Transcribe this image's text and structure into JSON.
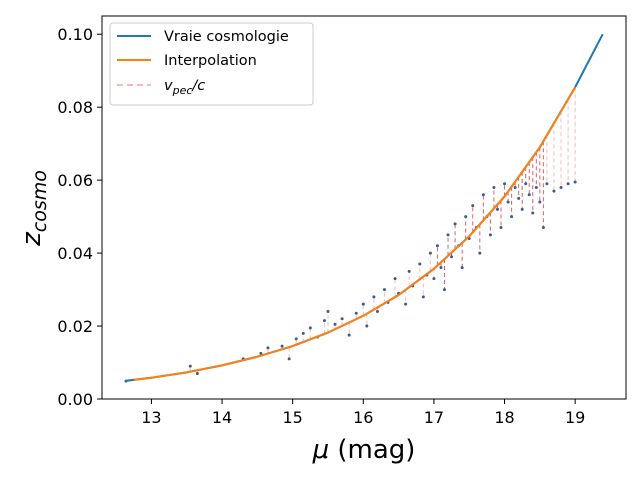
{
  "chart_data": {
    "type": "scatter",
    "title": "",
    "xlabel": "μ (mag)",
    "ylabel_base": "z",
    "ylabel_sub": "cosmo",
    "xlim": [
      12.3,
      19.72
    ],
    "ylim": [
      0.0,
      0.105
    ],
    "xticks": [
      13,
      14,
      15,
      16,
      17,
      18,
      19
    ],
    "yticks": [
      0.0,
      0.02,
      0.04,
      0.06,
      0.08,
      0.1
    ],
    "ytick_labels": [
      "0.00",
      "0.02",
      "0.04",
      "0.06",
      "0.08",
      "0.10"
    ],
    "grid": false,
    "legend_position": "top-left",
    "colors": {
      "true_cosmology": "#1f77b4",
      "interpolation": "#ff7f0e",
      "vpec": "#f4a3a8",
      "vpec_dense": "#d62728",
      "points": "#3b5b92"
    },
    "series": [
      {
        "name": "Vraie cosmologie",
        "style": "line",
        "x": [
          12.64,
          13.0,
          13.5,
          14.0,
          14.5,
          15.0,
          15.5,
          16.0,
          16.5,
          17.0,
          17.5,
          18.0,
          18.5,
          19.0,
          19.39
        ],
        "y": [
          0.005,
          0.0058,
          0.0073,
          0.0092,
          0.0116,
          0.0145,
          0.0182,
          0.0228,
          0.0285,
          0.0357,
          0.0446,
          0.0555,
          0.069,
          0.0855,
          0.1
        ]
      },
      {
        "name": "Interpolation",
        "style": "line",
        "x": [
          12.75,
          13.0,
          13.5,
          14.0,
          14.5,
          15.0,
          15.5,
          16.0,
          16.5,
          17.0,
          17.5,
          18.0,
          18.5,
          19.0
        ],
        "y": [
          0.0053,
          0.0058,
          0.0073,
          0.0092,
          0.0116,
          0.0145,
          0.0182,
          0.0228,
          0.0285,
          0.0357,
          0.0446,
          0.0555,
          0.069,
          0.0855
        ]
      },
      {
        "name": "v_pec/c",
        "label_main": "v",
        "label_sub": "pec",
        "label_tail": "/c",
        "style": "dashed-vertical"
      }
    ],
    "scatter_points": [
      [
        12.64,
        0.0049
      ],
      [
        13.55,
        0.009
      ],
      [
        13.65,
        0.007
      ],
      [
        14.3,
        0.011
      ],
      [
        14.55,
        0.0125
      ],
      [
        14.65,
        0.014
      ],
      [
        14.85,
        0.0145
      ],
      [
        14.95,
        0.011
      ],
      [
        15.05,
        0.0165
      ],
      [
        15.15,
        0.018
      ],
      [
        15.25,
        0.0195
      ],
      [
        15.35,
        0.017
      ],
      [
        15.45,
        0.0215
      ],
      [
        15.5,
        0.024
      ],
      [
        15.6,
        0.0205
      ],
      [
        15.7,
        0.022
      ],
      [
        15.8,
        0.0175
      ],
      [
        15.9,
        0.0235
      ],
      [
        16.0,
        0.026
      ],
      [
        16.05,
        0.02
      ],
      [
        16.15,
        0.028
      ],
      [
        16.2,
        0.024
      ],
      [
        16.3,
        0.03
      ],
      [
        16.35,
        0.0265
      ],
      [
        16.45,
        0.033
      ],
      [
        16.5,
        0.029
      ],
      [
        16.6,
        0.026
      ],
      [
        16.65,
        0.035
      ],
      [
        16.7,
        0.031
      ],
      [
        16.8,
        0.037
      ],
      [
        16.85,
        0.028
      ],
      [
        16.9,
        0.034
      ],
      [
        16.95,
        0.04
      ],
      [
        17.0,
        0.033
      ],
      [
        17.05,
        0.042
      ],
      [
        17.1,
        0.036
      ],
      [
        17.15,
        0.03
      ],
      [
        17.2,
        0.045
      ],
      [
        17.25,
        0.039
      ],
      [
        17.3,
        0.048
      ],
      [
        17.35,
        0.042
      ],
      [
        17.4,
        0.036
      ],
      [
        17.45,
        0.05
      ],
      [
        17.5,
        0.044
      ],
      [
        17.55,
        0.053
      ],
      [
        17.6,
        0.047
      ],
      [
        17.65,
        0.04
      ],
      [
        17.7,
        0.056
      ],
      [
        17.75,
        0.05
      ],
      [
        17.8,
        0.045
      ],
      [
        17.85,
        0.058
      ],
      [
        17.9,
        0.052
      ],
      [
        17.95,
        0.047
      ],
      [
        18.0,
        0.059
      ],
      [
        18.05,
        0.054
      ],
      [
        18.1,
        0.05
      ],
      [
        18.15,
        0.058
      ],
      [
        18.2,
        0.055
      ],
      [
        18.25,
        0.052
      ],
      [
        18.3,
        0.059
      ],
      [
        18.35,
        0.056
      ],
      [
        18.4,
        0.051
      ],
      [
        18.45,
        0.058
      ],
      [
        18.5,
        0.054
      ],
      [
        18.55,
        0.047
      ],
      [
        18.6,
        0.059
      ],
      [
        18.7,
        0.057
      ],
      [
        18.8,
        0.058
      ],
      [
        18.9,
        0.059
      ],
      [
        19.0,
        0.0595
      ]
    ]
  }
}
